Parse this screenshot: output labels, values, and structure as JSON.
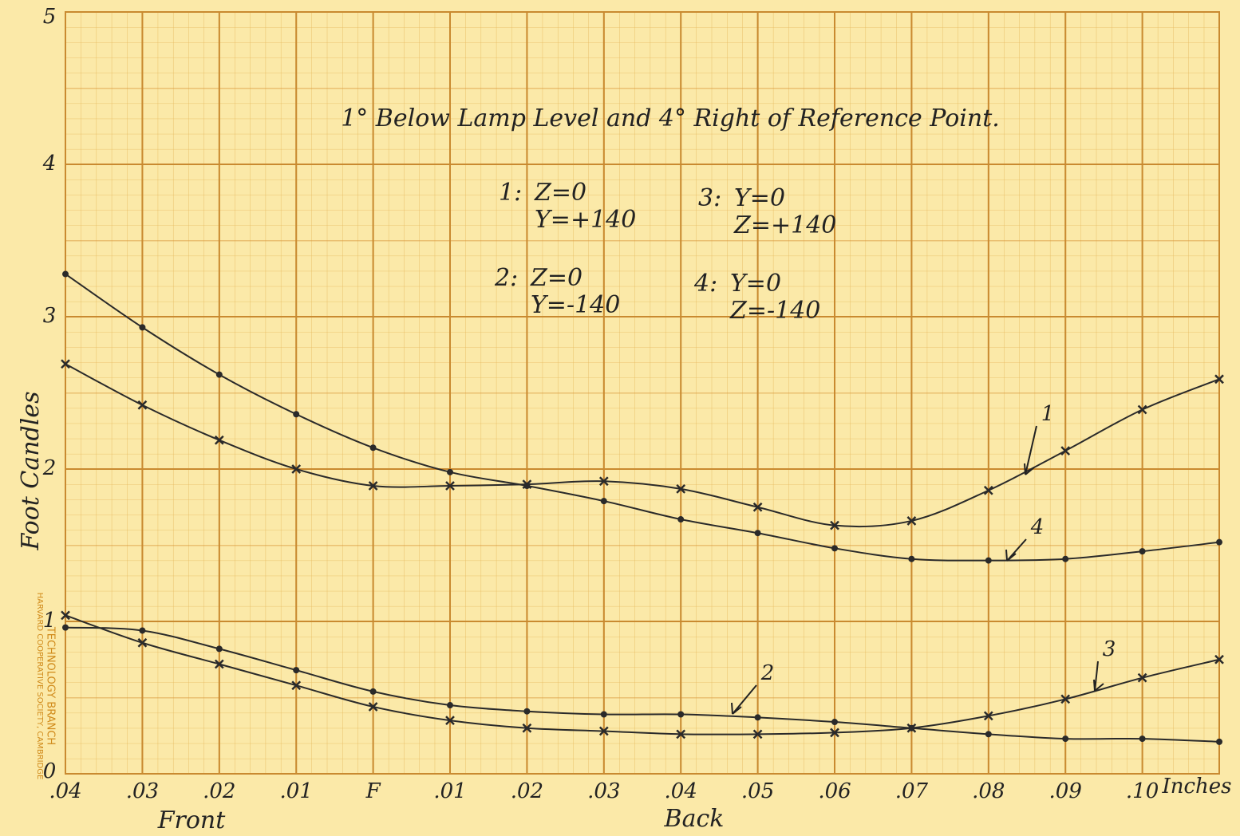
{
  "chart_data": {
    "type": "line",
    "title": "1° Below Lamp Level and 4° Right of Reference Point.",
    "y_label": "Foot Candles",
    "x_label_front": "Front",
    "x_label_back": "Back",
    "x_unit": "Inches",
    "watermark": [
      "TECHNOLOGY BRANCH",
      "HARVARD COOPERATIVE SOCIETY, CAMBRIDGE"
    ],
    "x": [
      -0.04,
      -0.03,
      -0.02,
      -0.01,
      0,
      0.01,
      0.02,
      0.03,
      0.04,
      0.05,
      0.06,
      0.07,
      0.08,
      0.09,
      0.1,
      0.11
    ],
    "xlim": [
      -0.04,
      0.11
    ],
    "xticks": [
      {
        "value": -0.04,
        "label": ".04"
      },
      {
        "value": -0.03,
        "label": ".03"
      },
      {
        "value": -0.02,
        "label": ".02"
      },
      {
        "value": -0.01,
        "label": ".01"
      },
      {
        "value": 0,
        "label": "F"
      },
      {
        "value": 0.01,
        "label": ".01"
      },
      {
        "value": 0.02,
        "label": ".02"
      },
      {
        "value": 0.03,
        "label": ".03"
      },
      {
        "value": 0.04,
        "label": ".04"
      },
      {
        "value": 0.05,
        "label": ".05"
      },
      {
        "value": 0.06,
        "label": ".06"
      },
      {
        "value": 0.07,
        "label": ".07"
      },
      {
        "value": 0.08,
        "label": ".08"
      },
      {
        "value": 0.09,
        "label": ".09"
      },
      {
        "value": 0.1,
        "label": ".10"
      }
    ],
    "ylim": [
      0,
      5
    ],
    "yticks": [
      0,
      1,
      2,
      3,
      4,
      5
    ],
    "grid": true,
    "series": [
      {
        "name": "1",
        "key": "1:",
        "legend_lines": [
          "Z=0",
          "Y=+140"
        ],
        "marker": "x",
        "color": "#2a2a2a",
        "values": [
          2.69,
          2.42,
          2.19,
          2.0,
          1.89,
          1.89,
          1.9,
          1.92,
          1.87,
          1.75,
          1.63,
          1.66,
          1.86,
          2.12,
          2.39,
          2.59
        ]
      },
      {
        "name": "2",
        "key": "2:",
        "legend_lines": [
          "Z=0",
          "Y=-140"
        ],
        "marker": "dot",
        "color": "#2a2a2a",
        "values": [
          0.96,
          0.94,
          0.82,
          0.68,
          0.54,
          0.45,
          0.41,
          0.39,
          0.39,
          0.37,
          0.34,
          0.3,
          0.26,
          0.23,
          0.23,
          0.21
        ]
      },
      {
        "name": "3",
        "key": "3:",
        "legend_lines": [
          "Y=0",
          "Z=+140"
        ],
        "marker": "x",
        "color": "#2a2a2a",
        "values": [
          1.04,
          0.86,
          0.72,
          0.58,
          0.44,
          0.35,
          0.3,
          0.28,
          0.26,
          0.26,
          0.27,
          0.3,
          0.38,
          0.49,
          0.63,
          0.75
        ]
      },
      {
        "name": "4",
        "key": "4:",
        "legend_lines": [
          "Y=0",
          "Z=-140"
        ],
        "marker": "dot",
        "color": "#2a2a2a",
        "values": [
          3.28,
          2.93,
          2.62,
          2.36,
          2.14,
          1.98,
          1.89,
          1.79,
          1.67,
          1.58,
          1.48,
          1.41,
          1.4,
          1.41,
          1.46,
          1.52
        ]
      }
    ]
  }
}
